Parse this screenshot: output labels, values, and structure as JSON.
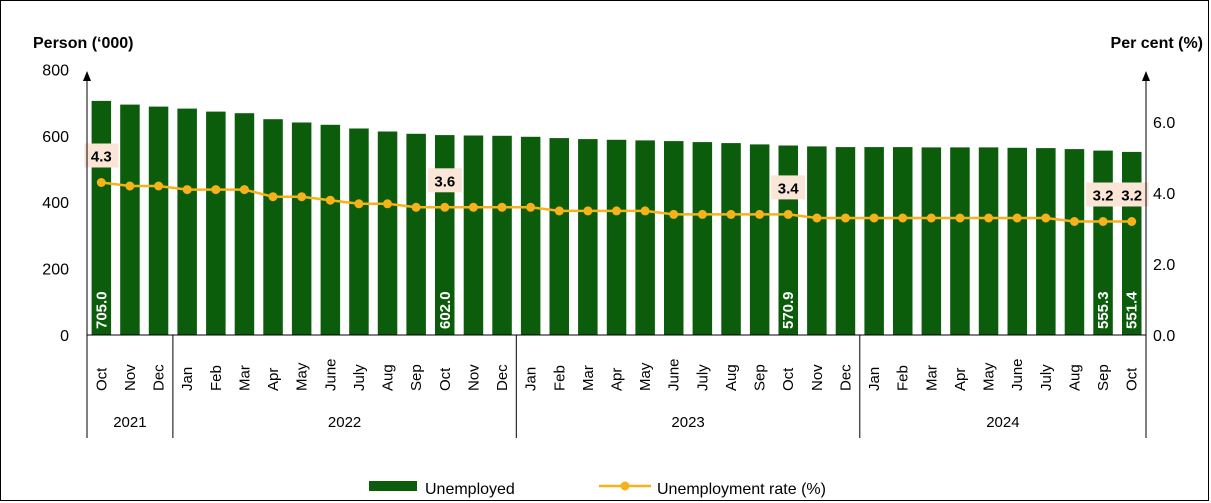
{
  "chart_data": {
    "type": "bar+line",
    "y_left_title": "Person (‘000)",
    "y_right_title": "Per cent (%)",
    "y_left_ticks": [
      "0",
      "200",
      "400",
      "600",
      "800"
    ],
    "y_right_ticks": [
      "0.0",
      "2.0",
      "4.0",
      "6.0"
    ],
    "ylim_left": [
      0,
      800
    ],
    "ylim_right": [
      0,
      7.5
    ],
    "categories": [
      "Oct",
      "Nov",
      "Dec",
      "Jan",
      "Feb",
      "Mar",
      "Apr",
      "May",
      "June",
      "July",
      "Aug",
      "Sep",
      "Oct",
      "Nov",
      "Dec",
      "Jan",
      "Feb",
      "Mar",
      "Apr",
      "May",
      "June",
      "July",
      "Aug",
      "Sep",
      "Oct",
      "Nov",
      "Dec",
      "Jan",
      "Feb",
      "Mar",
      "Apr",
      "May",
      "June",
      "July",
      "Aug",
      "Sep",
      "Oct"
    ],
    "years": [
      {
        "label": "2021",
        "start": 0,
        "end": 2
      },
      {
        "label": "2022",
        "start": 3,
        "end": 14
      },
      {
        "label": "2023",
        "start": 15,
        "end": 26
      },
      {
        "label": "2024",
        "start": 27,
        "end": 36
      }
    ],
    "series": [
      {
        "name": "Unemployed",
        "kind": "bar",
        "color": "#0b5c0b",
        "values": [
          705.0,
          694,
          688,
          682,
          673,
          668,
          650,
          640,
          633,
          622,
          613,
          606,
          602.0,
          601,
          600,
          597,
          593,
          590,
          588,
          586,
          584,
          581,
          578,
          574,
          570.9,
          568,
          566,
          566,
          566,
          565,
          565,
          565,
          564,
          563,
          560,
          555.3,
          551.4
        ],
        "labels": [
          {
            "index": 0,
            "text": "705.0"
          },
          {
            "index": 12,
            "text": "602.0"
          },
          {
            "index": 24,
            "text": "570.9"
          },
          {
            "index": 35,
            "text": "555.3"
          },
          {
            "index": 36,
            "text": "551.4"
          }
        ]
      },
      {
        "name": "Unemployment rate (%)",
        "kind": "line",
        "color": "#f5b21b",
        "values": [
          4.3,
          4.2,
          4.2,
          4.1,
          4.1,
          4.1,
          3.9,
          3.9,
          3.8,
          3.7,
          3.7,
          3.6,
          3.6,
          3.6,
          3.6,
          3.6,
          3.5,
          3.5,
          3.5,
          3.5,
          3.4,
          3.4,
          3.4,
          3.4,
          3.4,
          3.3,
          3.3,
          3.3,
          3.3,
          3.3,
          3.3,
          3.3,
          3.3,
          3.3,
          3.2,
          3.2,
          3.2
        ],
        "labels": [
          {
            "index": 0,
            "text": "4.3"
          },
          {
            "index": 12,
            "text": "3.6"
          },
          {
            "index": 24,
            "text": "3.4"
          },
          {
            "index": 35,
            "text": "3.2"
          },
          {
            "index": 36,
            "text": "3.2"
          }
        ]
      }
    ],
    "rate_label_bg": "#fbe5d6",
    "legend_placement": "bottom"
  }
}
